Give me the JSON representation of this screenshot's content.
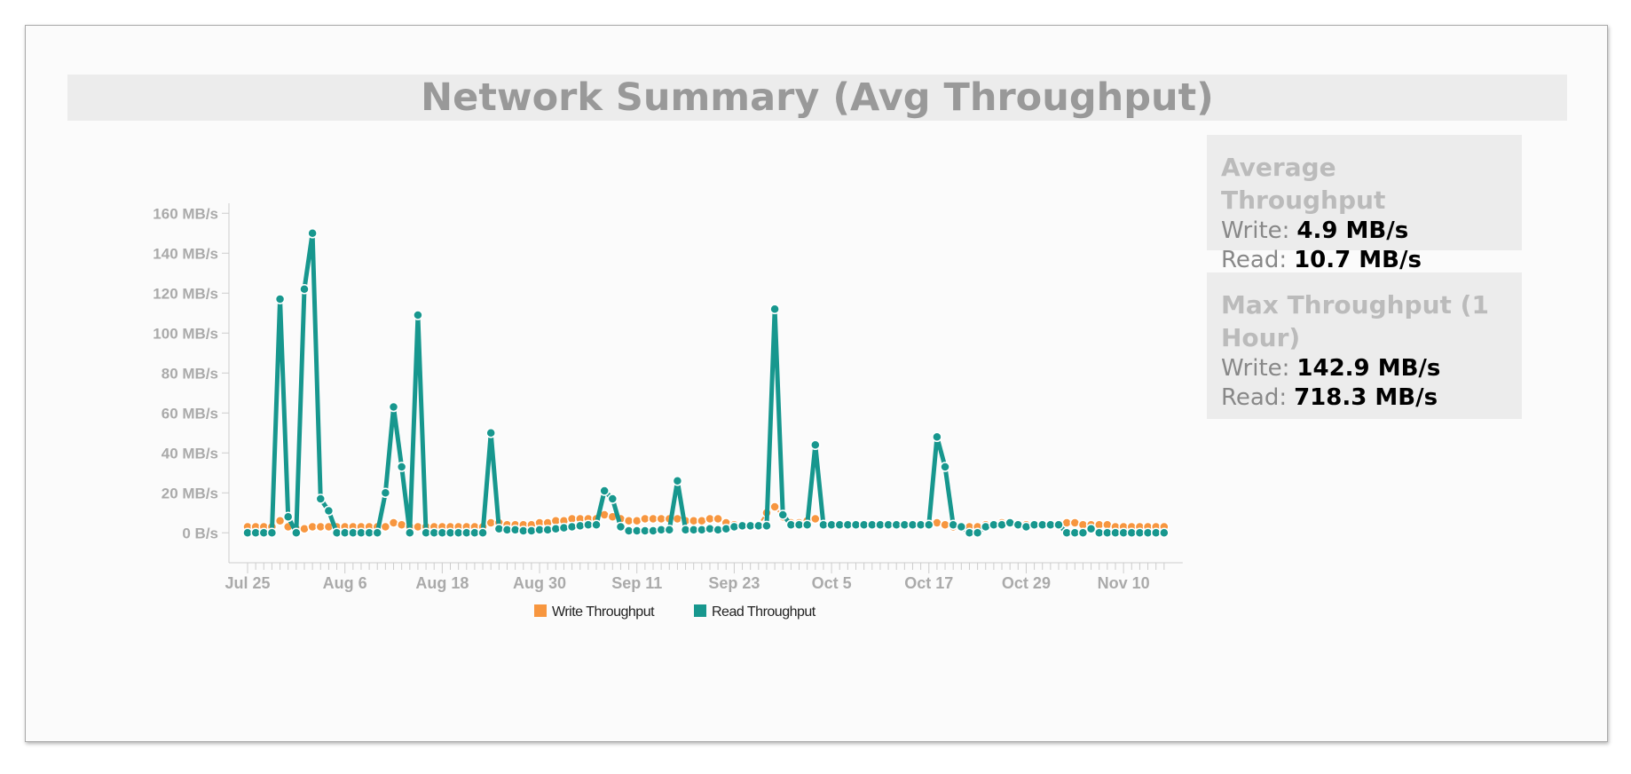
{
  "header": {
    "title": "Network Summary (Avg Throughput)"
  },
  "stats": [
    {
      "title": "Average Throughput",
      "rows": [
        {
          "label": "Write:",
          "value": "4.9 MB/s"
        },
        {
          "label": "Read:",
          "value": "10.7 MB/s"
        }
      ]
    },
    {
      "title": "Max Throughput (1 Hour)",
      "rows": [
        {
          "label": "Write:",
          "value": "142.9 MB/s"
        },
        {
          "label": "Read:",
          "value": "718.3 MB/s"
        }
      ]
    }
  ],
  "chart_data": {
    "type": "line",
    "legend": "bottom",
    "categories": [
      "Jul 25",
      null,
      null,
      null,
      null,
      null,
      null,
      null,
      null,
      null,
      null,
      null,
      "Aug 6",
      null,
      null,
      null,
      null,
      null,
      null,
      null,
      null,
      null,
      null,
      null,
      "Aug 18",
      null,
      null,
      null,
      null,
      null,
      null,
      null,
      null,
      null,
      null,
      null,
      "Aug 30",
      null,
      null,
      null,
      null,
      null,
      null,
      null,
      null,
      null,
      null,
      null,
      "Sep 11",
      null,
      null,
      null,
      null,
      null,
      null,
      null,
      null,
      null,
      null,
      null,
      "Sep 23",
      null,
      null,
      null,
      null,
      null,
      null,
      null,
      null,
      null,
      null,
      null,
      "Oct 5",
      null,
      null,
      null,
      null,
      null,
      null,
      null,
      null,
      null,
      null,
      null,
      "Oct 17",
      null,
      null,
      null,
      null,
      null,
      null,
      null,
      null,
      null,
      null,
      null,
      "Oct 29",
      null,
      null,
      null,
      null,
      null,
      null,
      null,
      null,
      null,
      null,
      null,
      "Nov 10",
      null,
      null,
      null,
      null,
      null
    ],
    "ylim": [
      -15,
      165
    ],
    "yticks": [
      {
        "value": 0,
        "label": "0 B/s"
      },
      {
        "value": 20,
        "label": "20 MB/s"
      },
      {
        "value": 40,
        "label": "40 MB/s"
      },
      {
        "value": 60,
        "label": "60 MB/s"
      },
      {
        "value": 80,
        "label": "80 MB/s"
      },
      {
        "value": 100,
        "label": "100 MB/s"
      },
      {
        "value": 120,
        "label": "120 MB/s"
      },
      {
        "value": 140,
        "label": "140 MB/s"
      },
      {
        "value": 160,
        "label": "160 MB/s"
      }
    ],
    "series": [
      {
        "name": "Write Throughput",
        "color": "#f7963f",
        "values": [
          3,
          3,
          3,
          3,
          6,
          3,
          2,
          2,
          3,
          3,
          3,
          3,
          3,
          3,
          3,
          3,
          3,
          3,
          5,
          4,
          3,
          3,
          3,
          3,
          3,
          3,
          3,
          3,
          3,
          3,
          5,
          5,
          4,
          4,
          4,
          4,
          5,
          5,
          6,
          6,
          7,
          7,
          7,
          7,
          9,
          8,
          7,
          6,
          6,
          7,
          7,
          7,
          7,
          7,
          6,
          6,
          6,
          7,
          7,
          5,
          4,
          4,
          4,
          4,
          10,
          13,
          8,
          5,
          5,
          6,
          7,
          4,
          4,
          4,
          4,
          4,
          4,
          4,
          4,
          4,
          4,
          4,
          4,
          4,
          4,
          5,
          4,
          3,
          3,
          3,
          3,
          4,
          4,
          5,
          5,
          4,
          4,
          4,
          4,
          4,
          4,
          5,
          5,
          4,
          4,
          4,
          4,
          3,
          3,
          3,
          3,
          3,
          3,
          3
        ]
      },
      {
        "name": "Read Throughput",
        "color": "#17978e",
        "values": [
          0,
          0,
          0,
          0,
          117,
          8,
          0,
          122,
          150,
          17,
          11,
          0,
          0,
          0,
          0,
          0,
          0,
          20,
          63,
          33,
          0,
          109,
          0,
          0,
          0,
          0,
          0,
          0,
          0,
          0,
          50,
          2,
          1.5,
          1.5,
          1,
          1,
          1.5,
          1.5,
          2,
          2.5,
          3,
          3.5,
          4,
          4,
          21,
          17,
          3,
          1,
          1,
          1,
          1,
          1.5,
          1.5,
          26,
          1.5,
          1.5,
          1.5,
          2,
          1.5,
          2,
          3,
          3.5,
          3.5,
          3.5,
          3.5,
          112,
          9,
          4,
          4,
          4,
          44,
          4,
          4,
          4,
          4,
          4,
          4,
          4,
          4,
          4,
          4,
          4,
          4,
          4,
          4,
          48,
          33,
          4,
          3,
          0,
          0,
          3,
          4,
          4,
          5,
          4,
          3,
          4,
          4,
          4,
          4,
          0,
          0,
          0,
          2,
          0,
          0,
          0,
          0,
          0,
          0,
          0,
          0,
          0
        ]
      }
    ]
  }
}
